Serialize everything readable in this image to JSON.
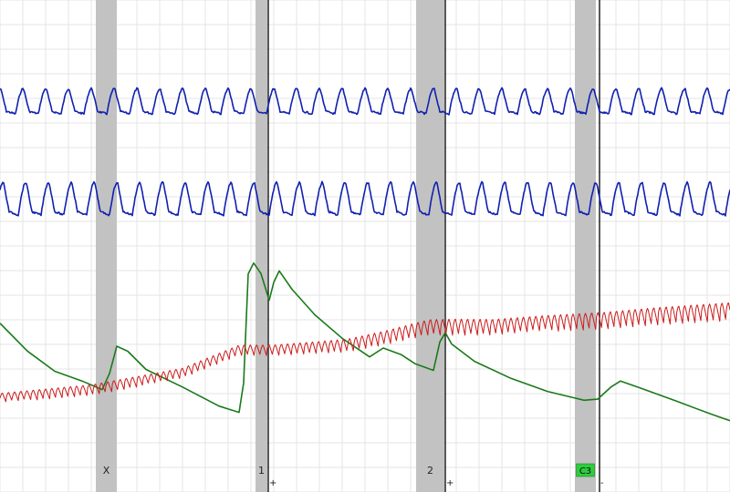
{
  "chart_data": {
    "type": "line",
    "title": "",
    "xlabel": "",
    "ylabel": "",
    "grid": true,
    "x_range": [
      0,
      800
    ],
    "question_bands": [
      {
        "label": "X",
        "start": 105,
        "end": 128,
        "highlight": ""
      },
      {
        "label": "1",
        "start": 280,
        "end": 293,
        "highlight": ""
      },
      {
        "label": "2",
        "start": 456,
        "end": 487,
        "highlight": ""
      },
      {
        "label": "C3",
        "start": 630,
        "end": 653,
        "highlight": "#2ecc40"
      }
    ],
    "answer_markers": [
      {
        "x": 294,
        "label": "+"
      },
      {
        "x": 488,
        "label": "+"
      },
      {
        "x": 657,
        "label": "-"
      }
    ],
    "series": [
      {
        "key": "pneumo_upper",
        "color": "#1020b0",
        "baseline": 125,
        "amplitude": 28,
        "cycle_period": 25,
        "cycle_phase": 8,
        "noise": 2
      },
      {
        "key": "pneumo_lower",
        "color": "#1020b0",
        "baseline": 236,
        "amplitude": 36,
        "cycle_period": 25,
        "cycle_phase": 30,
        "noise": 2
      },
      {
        "key": "electrodermal",
        "color": "#1a7a1a",
        "points": [
          [
            0,
            355
          ],
          [
            30,
            385
          ],
          [
            60,
            408
          ],
          [
            90,
            418
          ],
          [
            112,
            428
          ],
          [
            120,
            410
          ],
          [
            128,
            380
          ],
          [
            140,
            385
          ],
          [
            160,
            405
          ],
          [
            200,
            425
          ],
          [
            240,
            445
          ],
          [
            262,
            452
          ],
          [
            267,
            420
          ],
          [
            272,
            300
          ],
          [
            278,
            288
          ],
          [
            286,
            300
          ],
          [
            295,
            330
          ],
          [
            300,
            310
          ],
          [
            306,
            298
          ],
          [
            320,
            318
          ],
          [
            345,
            345
          ],
          [
            375,
            372
          ],
          [
            405,
            392
          ],
          [
            420,
            382
          ],
          [
            440,
            390
          ],
          [
            455,
            400
          ],
          [
            475,
            406
          ],
          [
            482,
            375
          ],
          [
            488,
            365
          ],
          [
            495,
            378
          ],
          [
            520,
            397
          ],
          [
            560,
            415
          ],
          [
            600,
            430
          ],
          [
            640,
            440
          ],
          [
            655,
            438
          ],
          [
            670,
            425
          ],
          [
            680,
            418
          ],
          [
            700,
            425
          ],
          [
            740,
            440
          ],
          [
            780,
            455
          ],
          [
            800,
            462
          ]
        ]
      },
      {
        "key": "cardio",
        "color": "#cc1a1a",
        "baseline_points": [
          [
            0,
            437
          ],
          [
            100,
            428
          ],
          [
            200,
            410
          ],
          [
            262,
            385
          ],
          [
            300,
            385
          ],
          [
            380,
            380
          ],
          [
            420,
            372
          ],
          [
            470,
            360
          ],
          [
            540,
            360
          ],
          [
            600,
            355
          ],
          [
            660,
            352
          ],
          [
            720,
            347
          ],
          [
            800,
            342
          ]
        ],
        "amplitude_points": [
          [
            0,
            11
          ],
          [
            200,
            12
          ],
          [
            300,
            13
          ],
          [
            450,
            18
          ],
          [
            500,
            20
          ],
          [
            600,
            18
          ],
          [
            800,
            20
          ]
        ],
        "period": 6.8
      }
    ]
  }
}
